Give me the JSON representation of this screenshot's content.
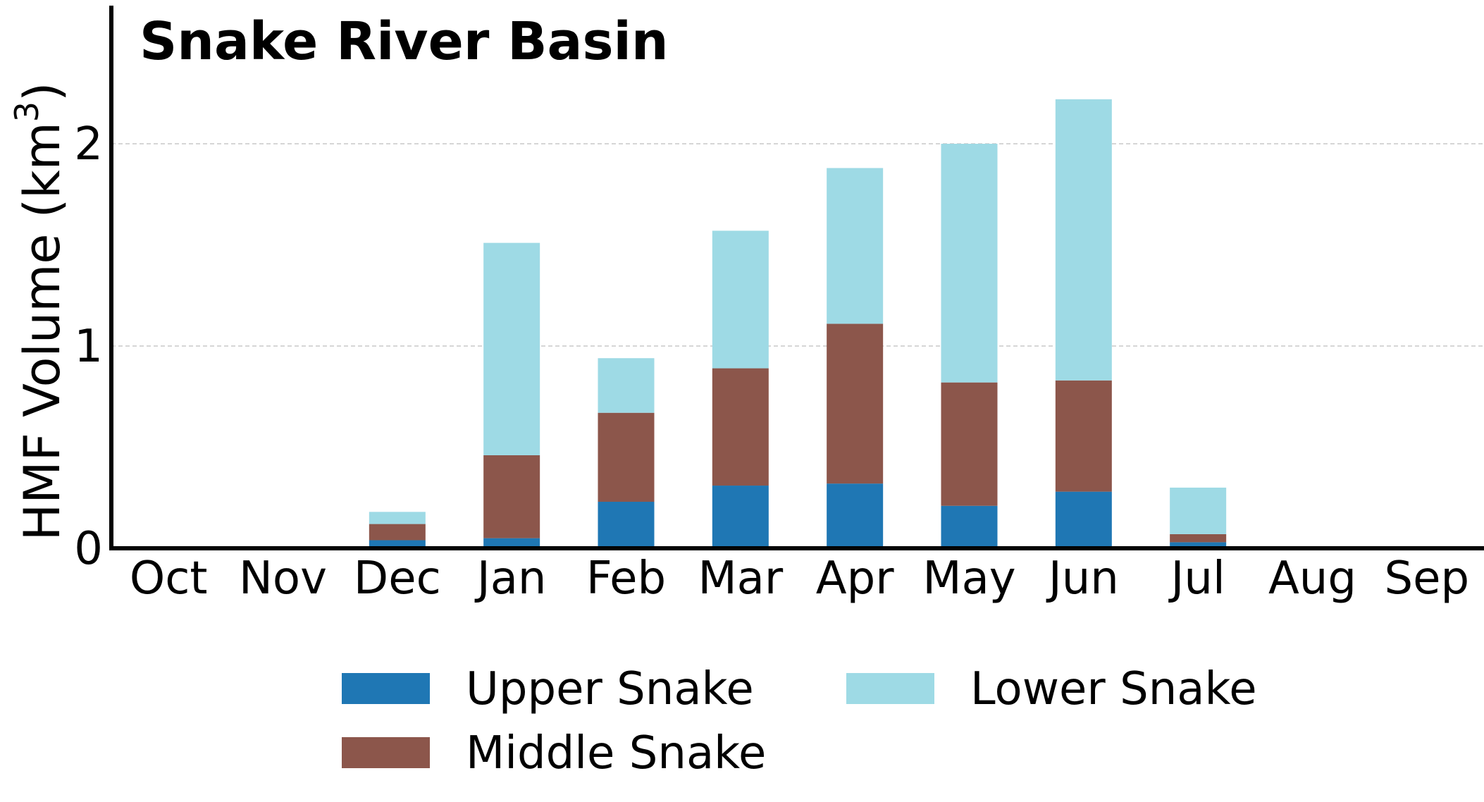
{
  "chart_data": {
    "type": "bar",
    "stacked": true,
    "title": "Snake River Basin",
    "xlabel": "",
    "ylabel": "HMF Volume (km",
    "ylabel_superscript": "3",
    "ylabel_suffix": ")",
    "categories": [
      "Oct",
      "Nov",
      "Dec",
      "Jan",
      "Feb",
      "Mar",
      "Apr",
      "May",
      "Jun",
      "Jul",
      "Aug",
      "Sep"
    ],
    "ylim": [
      0,
      2.7
    ],
    "yticks": [
      0,
      1,
      2
    ],
    "grid": "horizontal dashed",
    "legend_position": "bottom",
    "series": [
      {
        "name": "Upper Snake",
        "color": "#1f77b4",
        "values": [
          0,
          0,
          0.04,
          0.05,
          0.23,
          0.31,
          0.32,
          0.21,
          0.28,
          0.03,
          0,
          0
        ]
      },
      {
        "name": "Middle Snake",
        "color": "#8c564b",
        "values": [
          0,
          0,
          0.08,
          0.41,
          0.44,
          0.58,
          0.79,
          0.61,
          0.55,
          0.04,
          0,
          0
        ]
      },
      {
        "name": "Lower Snake",
        "color": "#9edae5",
        "values": [
          0,
          0,
          0.06,
          1.05,
          0.27,
          0.68,
          0.77,
          1.18,
          1.39,
          0.23,
          0,
          0
        ]
      }
    ]
  }
}
